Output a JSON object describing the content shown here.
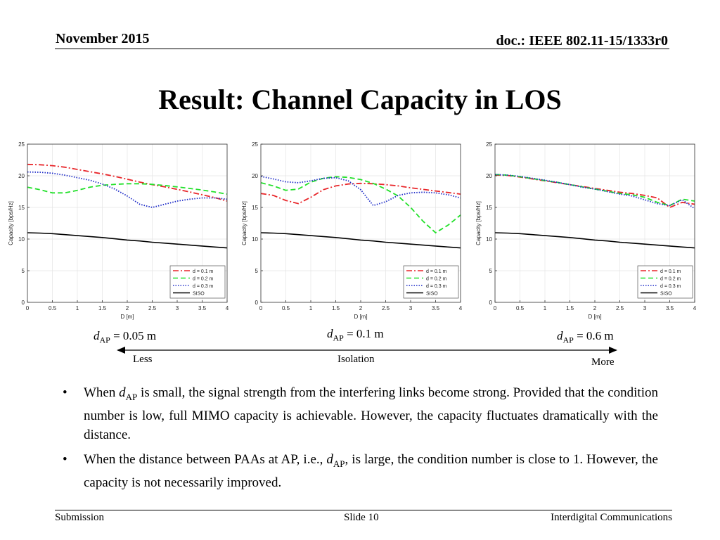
{
  "header": {
    "date": "November 2015",
    "doc": "doc.: IEEE 802.11-15/1333r0"
  },
  "title": "Result: Channel Capacity in LOS",
  "colors": {
    "d01": "#e8262a",
    "d02": "#22e02a",
    "d03": "#1f2dc8",
    "siso": "#000000"
  },
  "chart_data": [
    {
      "type": "line",
      "title": "",
      "xlabel": "D [m]",
      "ylabel": "Capacity [bps/Hz]",
      "xlim": [
        0,
        4
      ],
      "ylim": [
        0,
        25
      ],
      "xticks": [
        "0",
        "0.5",
        "1",
        "1.5",
        "2",
        "2.5",
        "3",
        "3.5",
        "4"
      ],
      "yticks": [
        "0",
        "5",
        "10",
        "15",
        "20",
        "25"
      ],
      "grid": true,
      "legend_position": "bottom-right",
      "x": [
        0,
        0.25,
        0.5,
        0.75,
        1,
        1.25,
        1.5,
        1.75,
        2,
        2.25,
        2.5,
        2.75,
        3,
        3.25,
        3.5,
        3.75,
        4
      ],
      "series": [
        {
          "name": "d = 0.1 m",
          "style": "dashdot",
          "color": "#e8262a",
          "values": [
            21.8,
            21.75,
            21.6,
            21.35,
            21.0,
            20.65,
            20.3,
            19.9,
            19.45,
            19.0,
            18.6,
            18.25,
            17.85,
            17.45,
            17.0,
            16.55,
            16.0
          ]
        },
        {
          "name": "d = 0.2 m",
          "style": "dashed",
          "color": "#22e02a",
          "values": [
            18.2,
            17.8,
            17.3,
            17.3,
            17.7,
            18.2,
            18.5,
            18.65,
            18.75,
            18.75,
            18.65,
            18.45,
            18.25,
            18.0,
            17.75,
            17.45,
            17.1
          ]
        },
        {
          "name": "d = 0.3 m",
          "style": "dotted",
          "color": "#1f2dc8",
          "values": [
            20.6,
            20.55,
            20.4,
            20.1,
            19.7,
            19.3,
            18.7,
            17.9,
            16.8,
            15.5,
            15.0,
            15.5,
            16.0,
            16.3,
            16.5,
            16.5,
            16.3
          ]
        },
        {
          "name": "SISO",
          "style": "solid",
          "color": "#000000",
          "values": [
            11.0,
            10.95,
            10.85,
            10.7,
            10.55,
            10.4,
            10.25,
            10.05,
            9.85,
            9.7,
            9.5,
            9.35,
            9.2,
            9.05,
            8.9,
            8.75,
            8.6
          ]
        }
      ]
    },
    {
      "type": "line",
      "title": "",
      "xlabel": "D [m]",
      "ylabel": "Capacity [bps/Hz]",
      "xlim": [
        0,
        4
      ],
      "ylim": [
        0,
        25
      ],
      "xticks": [
        "0",
        "0.5",
        "1",
        "1.5",
        "2",
        "2.5",
        "3",
        "3.5",
        "4"
      ],
      "yticks": [
        "0",
        "5",
        "10",
        "15",
        "20",
        "25"
      ],
      "grid": true,
      "legend_position": "bottom-right",
      "x": [
        0,
        0.25,
        0.5,
        0.75,
        1,
        1.25,
        1.5,
        1.75,
        2,
        2.25,
        2.5,
        2.75,
        3,
        3.25,
        3.5,
        3.75,
        4
      ],
      "series": [
        {
          "name": "d = 0.1 m",
          "style": "dashdot",
          "color": "#e8262a",
          "values": [
            17.2,
            16.9,
            16.1,
            15.6,
            16.6,
            17.8,
            18.4,
            18.7,
            18.8,
            18.75,
            18.6,
            18.4,
            18.1,
            17.85,
            17.6,
            17.35,
            17.1
          ]
        },
        {
          "name": "d = 0.2 m",
          "style": "dashed",
          "color": "#22e02a",
          "values": [
            18.9,
            18.4,
            17.7,
            17.9,
            19.0,
            19.6,
            19.85,
            19.75,
            19.4,
            18.8,
            17.9,
            16.8,
            15.0,
            12.8,
            11.0,
            12.2,
            13.8
          ]
        },
        {
          "name": "d = 0.3 m",
          "style": "dotted",
          "color": "#1f2dc8",
          "values": [
            19.9,
            19.5,
            19.05,
            18.9,
            19.2,
            19.6,
            19.7,
            19.2,
            17.8,
            15.3,
            15.9,
            16.9,
            17.3,
            17.4,
            17.3,
            17.0,
            16.5
          ]
        },
        {
          "name": "SISO",
          "style": "solid",
          "color": "#000000",
          "values": [
            11.0,
            10.95,
            10.85,
            10.7,
            10.55,
            10.4,
            10.25,
            10.05,
            9.85,
            9.7,
            9.5,
            9.35,
            9.2,
            9.05,
            8.9,
            8.75,
            8.6
          ]
        }
      ]
    },
    {
      "type": "line",
      "title": "",
      "xlabel": "D [m]",
      "ylabel": "Capacity [bps/Hz]",
      "xlim": [
        0,
        4
      ],
      "ylim": [
        0,
        25
      ],
      "xticks": [
        "0",
        "0.5",
        "1",
        "1.5",
        "2",
        "2.5",
        "3",
        "3.5",
        "4"
      ],
      "yticks": [
        "0",
        "5",
        "10",
        "15",
        "20",
        "25"
      ],
      "grid": true,
      "legend_position": "bottom-right",
      "x": [
        0,
        0.25,
        0.5,
        0.75,
        1,
        1.25,
        1.5,
        1.75,
        2,
        2.25,
        2.5,
        2.75,
        3,
        3.25,
        3.5,
        3.75,
        4
      ],
      "series": [
        {
          "name": "d = 0.1 m",
          "style": "dashdot",
          "color": "#e8262a",
          "values": [
            20.1,
            20.05,
            19.8,
            19.5,
            19.2,
            18.9,
            18.6,
            18.3,
            18.0,
            17.7,
            17.4,
            17.2,
            16.9,
            16.5,
            15.0,
            15.8,
            15.5
          ]
        },
        {
          "name": "d = 0.2 m",
          "style": "dashed",
          "color": "#22e02a",
          "values": [
            20.2,
            20.1,
            19.85,
            19.55,
            19.25,
            18.95,
            18.6,
            18.25,
            17.9,
            17.55,
            17.2,
            17.0,
            16.6,
            15.8,
            15.3,
            16.3,
            16.0
          ]
        },
        {
          "name": "d = 0.3 m",
          "style": "dotted",
          "color": "#1f2dc8",
          "values": [
            20.2,
            20.1,
            19.9,
            19.6,
            19.3,
            18.95,
            18.6,
            18.2,
            17.9,
            17.5,
            17.1,
            16.8,
            16.2,
            15.6,
            15.3,
            16.2,
            14.8
          ]
        },
        {
          "name": "SISO",
          "style": "solid",
          "color": "#000000",
          "values": [
            11.0,
            10.95,
            10.85,
            10.7,
            10.55,
            10.4,
            10.25,
            10.05,
            9.85,
            9.7,
            9.5,
            9.35,
            9.2,
            9.05,
            8.9,
            8.75,
            8.6
          ]
        }
      ]
    }
  ],
  "dap_labels": [
    {
      "symbol": "d",
      "sub": "AP",
      "value": "= 0.05 m"
    },
    {
      "symbol": "d",
      "sub": "AP",
      "value": "= 0.1 m"
    },
    {
      "symbol": "d",
      "sub": "AP",
      "value": "= 0.6 m"
    }
  ],
  "isolation": {
    "less": "Less",
    "middle": "Isolation",
    "more": "More"
  },
  "bullets": [
    {
      "pre": "When ",
      "sym": "d",
      "sub": "AP",
      "post": " is small, the signal strength from the interfering links become strong. Provided that the condition number is low, full MIMO capacity is achievable. However, the capacity fluctuates dramatically with the distance."
    },
    {
      "pre": "When the distance between PAAs at AP, i.e., ",
      "sym": "d",
      "sub": "AP",
      "post": ", is large, the condition number is close to 1. However, the capacity is not necessarily improved."
    }
  ],
  "bullet_glyph": "•",
  "footer": {
    "left": "Submission",
    "center": "Slide 10",
    "right": "Interdigital Communications"
  }
}
